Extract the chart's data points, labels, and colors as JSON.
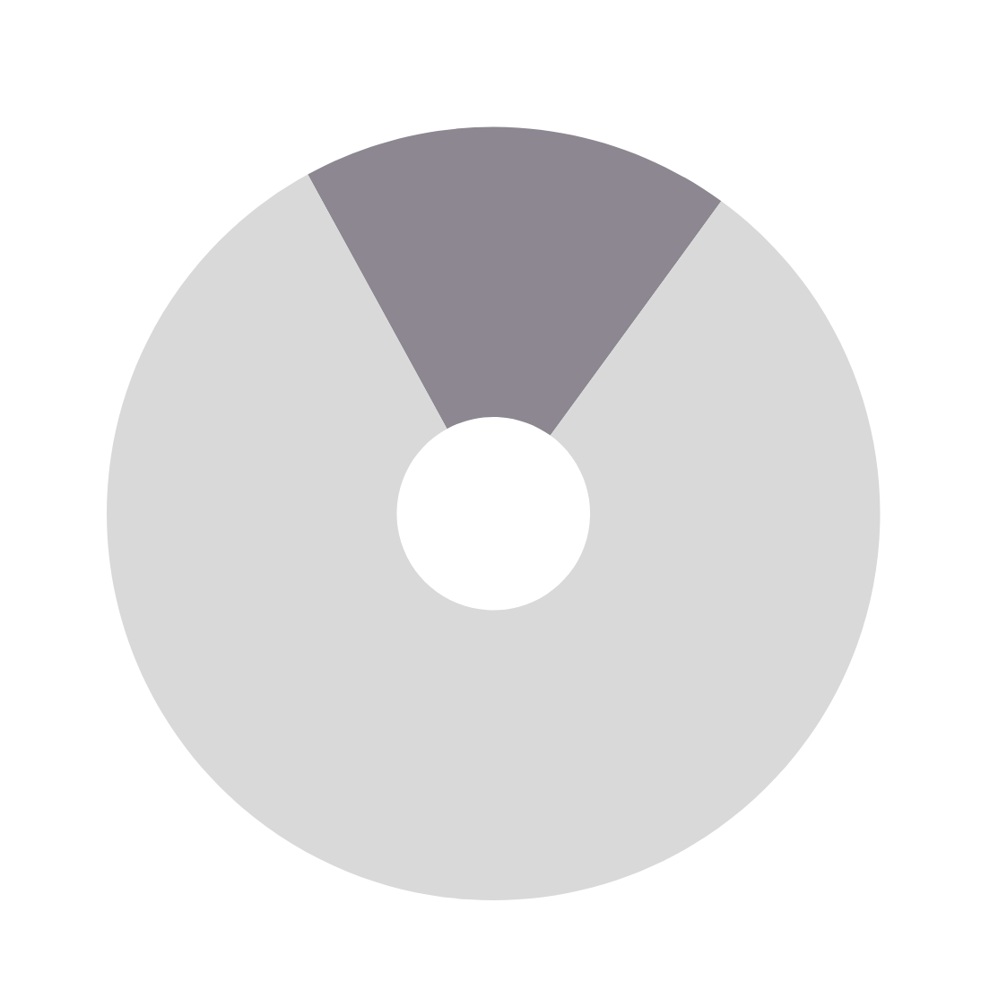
{
  "chart_data": {
    "type": "donut",
    "categories": [
      null,
      null
    ],
    "values": [
      18,
      82
    ],
    "colors": [
      "#8c8790",
      "#d9d9d9"
    ]
  }
}
